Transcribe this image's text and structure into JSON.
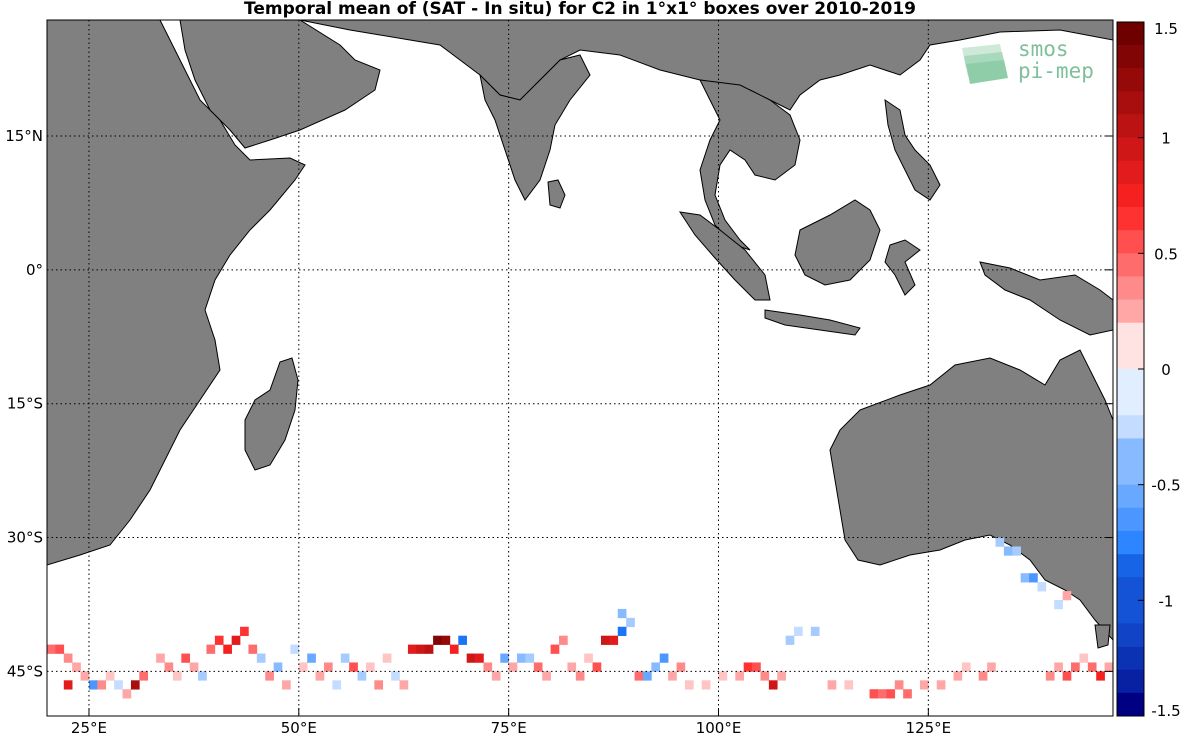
{
  "title": "Temporal mean of (SAT - In situ) for C2 in 1°x1° boxes over 2010-2019",
  "logo": {
    "line1": "smos",
    "line2": "pi-mep",
    "icon": "smos-pi-mep-logo"
  },
  "colors": {
    "land": "#808080",
    "ocean": "#ffffff",
    "grid": "#000000"
  },
  "chart_data": {
    "type": "heatmap",
    "projection": "equirectangular",
    "lon_range": [
      20,
      147
    ],
    "lat_range": [
      -50,
      28
    ],
    "x_ticks": [
      {
        "value": 25,
        "label": "25°E"
      },
      {
        "value": 50,
        "label": "50°E"
      },
      {
        "value": 75,
        "label": "75°E"
      },
      {
        "value": 100,
        "label": "100°E"
      },
      {
        "value": 125,
        "label": "125°E"
      }
    ],
    "y_ticks": [
      {
        "value": 15,
        "label": "15°N"
      },
      {
        "value": 0,
        "label": "0°"
      },
      {
        "value": -15,
        "label": "15°S"
      },
      {
        "value": -30,
        "label": "30°S"
      },
      {
        "value": -45,
        "label": "45°S"
      }
    ],
    "grid": true,
    "colorbar": {
      "range": [
        -1.5,
        1.5
      ],
      "levels": 30,
      "tick_values": [
        1.5,
        1,
        0.5,
        0,
        -0.5,
        -1,
        -1.5
      ],
      "tick_labels": [
        "1.5",
        "1",
        "0.5",
        "0",
        "-0.5",
        "-1",
        "-1.5"
      ],
      "colormap": "blue-white-red"
    },
    "boxes": [
      [
        20,
        -43,
        0.5
      ],
      [
        21,
        -43,
        0.6
      ],
      [
        22,
        -44,
        0.4
      ],
      [
        23,
        -45,
        0.3
      ],
      [
        22,
        -47,
        0.9
      ],
      [
        24,
        -46,
        0.3
      ],
      [
        25,
        -47,
        -0.6
      ],
      [
        26,
        -47,
        0.4
      ],
      [
        27,
        -46,
        0.2
      ],
      [
        28,
        -47,
        -0.2
      ],
      [
        29,
        -48,
        0.3
      ],
      [
        30,
        -47,
        1.2
      ],
      [
        31,
        -46,
        0.5
      ],
      [
        33,
        -44,
        0.3
      ],
      [
        34,
        -45,
        0.4
      ],
      [
        35,
        -46,
        0.2
      ],
      [
        36,
        -44,
        0.6
      ],
      [
        37,
        -45,
        0.3
      ],
      [
        38,
        -46,
        -0.3
      ],
      [
        39,
        -43,
        0.5
      ],
      [
        40,
        -42,
        0.7
      ],
      [
        41,
        -43,
        0.8
      ],
      [
        42,
        -42,
        0.9
      ],
      [
        43,
        -41,
        0.7
      ],
      [
        44,
        -43,
        0.5
      ],
      [
        45,
        -44,
        -0.3
      ],
      [
        46,
        -46,
        0.4
      ],
      [
        47,
        -45,
        -0.4
      ],
      [
        48,
        -47,
        0.3
      ],
      [
        49,
        -43,
        -0.2
      ],
      [
        50,
        -45,
        0.2
      ],
      [
        51,
        -44,
        -0.5
      ],
      [
        52,
        -46,
        0.3
      ],
      [
        53,
        -45,
        0.4
      ],
      [
        54,
        -47,
        -0.2
      ],
      [
        55,
        -44,
        -0.3
      ],
      [
        56,
        -45,
        0.6
      ],
      [
        57,
        -46,
        -0.3
      ],
      [
        58,
        -45,
        0.2
      ],
      [
        59,
        -47,
        0.4
      ],
      [
        60,
        -44,
        0.2
      ],
      [
        61,
        -46,
        -0.2
      ],
      [
        62,
        -47,
        0.3
      ],
      [
        63,
        -43,
        0.9
      ],
      [
        64,
        -43,
        1.0
      ],
      [
        65,
        -43,
        1.1
      ],
      [
        66,
        -42,
        1.4
      ],
      [
        67,
        -42,
        1.3
      ],
      [
        68,
        -43,
        0.8
      ],
      [
        69,
        -42,
        -0.8
      ],
      [
        70,
        -44,
        1.0
      ],
      [
        71,
        -44,
        0.9
      ],
      [
        72,
        -45,
        0.4
      ],
      [
        73,
        -46,
        0.3
      ],
      [
        74,
        -44,
        -0.5
      ],
      [
        75,
        -45,
        0.3
      ],
      [
        76,
        -44,
        -0.4
      ],
      [
        77,
        -44,
        -0.3
      ],
      [
        78,
        -45,
        0.5
      ],
      [
        79,
        -46,
        0.3
      ],
      [
        80,
        -43,
        0.6
      ],
      [
        81,
        -42,
        0.4
      ],
      [
        82,
        -45,
        0.3
      ],
      [
        83,
        -46,
        0.4
      ],
      [
        84,
        -44,
        0.2
      ],
      [
        85,
        -45,
        0.6
      ],
      [
        86,
        -42,
        1.0
      ],
      [
        87,
        -42,
        0.9
      ],
      [
        88,
        -41,
        -0.8
      ],
      [
        88,
        -39,
        -0.4
      ],
      [
        89,
        -40,
        -0.3
      ],
      [
        90,
        -46,
        0.5
      ],
      [
        91,
        -46,
        -0.5
      ],
      [
        92,
        -45,
        -0.4
      ],
      [
        93,
        -44,
        -0.6
      ],
      [
        94,
        -46,
        0.3
      ],
      [
        95,
        -45,
        0.4
      ],
      [
        96,
        -47,
        0.2
      ],
      [
        98,
        -47,
        0.2
      ],
      [
        100,
        -46,
        0.2
      ],
      [
        102,
        -46,
        0.3
      ],
      [
        103,
        -45,
        0.7
      ],
      [
        104,
        -45,
        0.6
      ],
      [
        105,
        -46,
        0.4
      ],
      [
        106,
        -47,
        1.0
      ],
      [
        107,
        -46,
        0.3
      ],
      [
        108,
        -42,
        -0.3
      ],
      [
        109,
        -41,
        -0.2
      ],
      [
        111,
        -41,
        -0.3
      ],
      [
        113,
        -47,
        0.3
      ],
      [
        115,
        -47,
        0.2
      ],
      [
        118,
        -48,
        0.6
      ],
      [
        119,
        -48,
        0.5
      ],
      [
        120,
        -48,
        0.6
      ],
      [
        121,
        -47,
        0.4
      ],
      [
        122,
        -48,
        0.5
      ],
      [
        124,
        -47,
        0.3
      ],
      [
        126,
        -47,
        0.3
      ],
      [
        133,
        -31,
        -0.3
      ],
      [
        134,
        -32,
        -0.4
      ],
      [
        135,
        -32,
        -0.3
      ],
      [
        136,
        -35,
        -0.4
      ],
      [
        137,
        -35,
        -0.6
      ],
      [
        138,
        -36,
        -0.2
      ],
      [
        139,
        -46,
        0.4
      ],
      [
        140,
        -45,
        0.3
      ],
      [
        141,
        -46,
        0.6
      ],
      [
        142,
        -45,
        0.5
      ],
      [
        143,
        -44,
        0.2
      ],
      [
        144,
        -45,
        0.5
      ],
      [
        145,
        -46,
        0.8
      ],
      [
        146,
        -45,
        0.3
      ],
      [
        140,
        -38,
        -0.2
      ],
      [
        141,
        -37,
        0.3
      ],
      [
        132,
        -45,
        0.3
      ],
      [
        131,
        -46,
        0.4
      ],
      [
        129,
        -45,
        0.2
      ],
      [
        128,
        -46,
        0.3
      ]
    ]
  }
}
